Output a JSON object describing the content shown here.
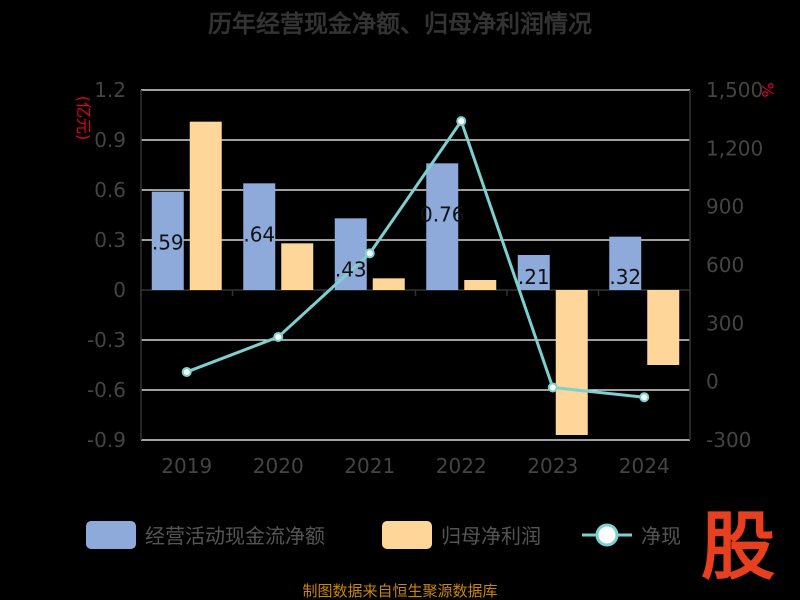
{
  "chart_data": {
    "type": "bar",
    "title": "历年经营现金净额、归母净利润情况",
    "categories": [
      "2019",
      "2020",
      "2021",
      "2022",
      "2023",
      "2024"
    ],
    "y_left": {
      "unit_label": "(亿元)",
      "ticks": [
        "1.2",
        "0.9",
        "0.6",
        "0.3",
        "0",
        "-0.3",
        "-0.6",
        "-0.9"
      ],
      "ylim": [
        -0.9,
        1.2
      ]
    },
    "y_right": {
      "unit_label": "%",
      "ticks": [
        "1,500",
        "1,200",
        "900",
        "600",
        "300",
        "0",
        "-300"
      ],
      "ylim": [
        -300,
        1500
      ]
    },
    "series": [
      {
        "name": "经营活动现金流净额",
        "type": "bar",
        "axis": "left",
        "color": "#8eaadb",
        "values": [
          0.59,
          0.64,
          0.43,
          0.76,
          0.21,
          0.32
        ],
        "labels": [
          ".59",
          ".64",
          ".43",
          "0.76",
          ".21",
          ".32"
        ]
      },
      {
        "name": "归母净利润",
        "type": "bar",
        "axis": "left",
        "color": "#ffd699",
        "values": [
          1.01,
          0.28,
          0.07,
          0.06,
          -0.87,
          -0.45
        ]
      },
      {
        "name": "净现",
        "type": "line",
        "axis": "right",
        "color": "#7ecfcf",
        "values": [
          50,
          230,
          660,
          1340,
          -30,
          -80
        ]
      }
    ],
    "grid": true,
    "legend_position": "bottom"
  },
  "source": "制图数据来自恒生聚源数据库",
  "logo_text": "股"
}
